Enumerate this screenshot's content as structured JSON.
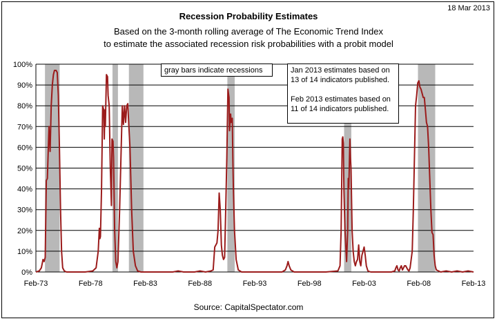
{
  "date_stamp": "18 Mar 2013",
  "source": "Source:  CapitalSpectator.com",
  "notes": {
    "recession_note": "gray bars indicate recessions",
    "estimate_note_1": "Jan 2013 estimates based on 13 of 14 indicators published.",
    "estimate_note_2": "Feb 2013 estimates based on 11 of 14 indicators published."
  },
  "colors": {
    "series": "#9b1b1b",
    "recession_bar": "#b8b8b8",
    "grid": "#000000"
  },
  "chart_data": {
    "type": "line",
    "title": "Recession Probability Estimates",
    "subtitle": [
      "Based on the 3-month rolling average of The Economic Trend Index",
      "to estimate the associated recession risk probabilities with a probit model"
    ],
    "xlabel": "",
    "ylabel": "",
    "xlim": [
      1973.0,
      2013.0
    ],
    "ylim": [
      0,
      100
    ],
    "y_ticks": [
      "0%",
      "10%",
      "20%",
      "30%",
      "40%",
      "50%",
      "60%",
      "70%",
      "80%",
      "90%",
      "100%"
    ],
    "x_ticks": [
      {
        "label": "Feb-73",
        "x": 1973.0
      },
      {
        "label": "Feb-78",
        "x": 1978.0
      },
      {
        "label": "Feb-83",
        "x": 1983.0
      },
      {
        "label": "Feb-88",
        "x": 1988.0
      },
      {
        "label": "Feb-93",
        "x": 1993.0
      },
      {
        "label": "Feb-98",
        "x": 1998.0
      },
      {
        "label": "Feb-03",
        "x": 2003.0
      },
      {
        "label": "Feb-08",
        "x": 2008.0
      },
      {
        "label": "Feb-13",
        "x": 2013.0
      }
    ],
    "grid": "horizontal",
    "legend": "none",
    "recessions": [
      [
        1973.83,
        1975.17
      ],
      [
        1980.0,
        1980.5
      ],
      [
        1981.5,
        1982.83
      ],
      [
        1990.5,
        1991.17
      ],
      [
        2001.17,
        2001.83
      ],
      [
        2007.92,
        2009.5
      ]
    ],
    "series": [
      {
        "points": [
          [
            1973.0,
            0
          ],
          [
            1973.3,
            0.5
          ],
          [
            1973.5,
            2
          ],
          [
            1973.65,
            6
          ],
          [
            1973.75,
            5
          ],
          [
            1973.85,
            7
          ],
          [
            1973.95,
            44
          ],
          [
            1974.05,
            45
          ],
          [
            1974.2,
            70
          ],
          [
            1974.3,
            58
          ],
          [
            1974.4,
            80
          ],
          [
            1974.5,
            90
          ],
          [
            1974.6,
            95
          ],
          [
            1974.7,
            97
          ],
          [
            1974.85,
            97
          ],
          [
            1974.95,
            96
          ],
          [
            1975.05,
            85
          ],
          [
            1975.15,
            60
          ],
          [
            1975.25,
            30
          ],
          [
            1975.35,
            10
          ],
          [
            1975.45,
            2
          ],
          [
            1975.6,
            0.5
          ],
          [
            1975.8,
            0
          ],
          [
            1977.5,
            0
          ],
          [
            1978.2,
            0.5
          ],
          [
            1978.5,
            2
          ],
          [
            1978.7,
            10
          ],
          [
            1978.8,
            21
          ],
          [
            1978.85,
            16
          ],
          [
            1978.9,
            17
          ],
          [
            1979.0,
            40
          ],
          [
            1979.05,
            60
          ],
          [
            1979.1,
            80
          ],
          [
            1979.2,
            78
          ],
          [
            1979.25,
            64
          ],
          [
            1979.3,
            78
          ],
          [
            1979.35,
            70
          ],
          [
            1979.45,
            95
          ],
          [
            1979.55,
            94
          ],
          [
            1979.6,
            85
          ],
          [
            1979.7,
            80
          ],
          [
            1979.8,
            50
          ],
          [
            1979.9,
            32
          ],
          [
            1979.95,
            64
          ],
          [
            1980.05,
            63
          ],
          [
            1980.1,
            55
          ],
          [
            1980.2,
            20
          ],
          [
            1980.3,
            5
          ],
          [
            1980.4,
            2
          ],
          [
            1980.5,
            5
          ],
          [
            1980.65,
            30
          ],
          [
            1980.8,
            60
          ],
          [
            1980.9,
            80
          ],
          [
            1981.0,
            71
          ],
          [
            1981.1,
            80
          ],
          [
            1981.2,
            72
          ],
          [
            1981.3,
            80
          ],
          [
            1981.4,
            81
          ],
          [
            1981.5,
            70
          ],
          [
            1981.6,
            60
          ],
          [
            1981.75,
            30
          ],
          [
            1981.9,
            10
          ],
          [
            1982.1,
            3
          ],
          [
            1982.3,
            0.5
          ],
          [
            1982.6,
            0
          ],
          [
            1985.5,
            0
          ],
          [
            1986.0,
            0.5
          ],
          [
            1986.5,
            0
          ],
          [
            1987.5,
            0
          ],
          [
            1988.0,
            0.5
          ],
          [
            1988.5,
            0
          ],
          [
            1989.0,
            0.5
          ],
          [
            1989.2,
            1
          ],
          [
            1989.35,
            12
          ],
          [
            1989.55,
            14
          ],
          [
            1989.65,
            20
          ],
          [
            1989.75,
            38
          ],
          [
            1989.85,
            30
          ],
          [
            1989.95,
            13
          ],
          [
            1990.05,
            8
          ],
          [
            1990.15,
            6
          ],
          [
            1990.25,
            7
          ],
          [
            1990.35,
            30
          ],
          [
            1990.45,
            55
          ],
          [
            1990.55,
            88
          ],
          [
            1990.65,
            84
          ],
          [
            1990.7,
            68
          ],
          [
            1990.8,
            76
          ],
          [
            1990.85,
            72
          ],
          [
            1990.95,
            74
          ],
          [
            1991.0,
            55
          ],
          [
            1991.05,
            40
          ],
          [
            1991.15,
            20
          ],
          [
            1991.3,
            6
          ],
          [
            1991.5,
            1
          ],
          [
            1991.8,
            0
          ],
          [
            1995.5,
            0
          ],
          [
            1995.8,
            1
          ],
          [
            1995.95,
            3
          ],
          [
            1996.05,
            5
          ],
          [
            1996.15,
            3
          ],
          [
            1996.3,
            1
          ],
          [
            1996.6,
            0
          ],
          [
            1999.5,
            0
          ],
          [
            2000.6,
            0.5
          ],
          [
            2000.8,
            3
          ],
          [
            2000.9,
            20
          ],
          [
            2001.0,
            64
          ],
          [
            2001.05,
            65
          ],
          [
            2001.1,
            62
          ],
          [
            2001.15,
            40
          ],
          [
            2001.25,
            20
          ],
          [
            2001.35,
            10
          ],
          [
            2001.4,
            5
          ],
          [
            2001.5,
            20
          ],
          [
            2001.55,
            45
          ],
          [
            2001.6,
            40
          ],
          [
            2001.7,
            64
          ],
          [
            2001.75,
            55
          ],
          [
            2001.8,
            50
          ],
          [
            2001.9,
            20
          ],
          [
            2002.0,
            10
          ],
          [
            2002.1,
            5
          ],
          [
            2002.2,
            3
          ],
          [
            2002.3,
            5
          ],
          [
            2002.4,
            6
          ],
          [
            2002.5,
            13
          ],
          [
            2002.6,
            5
          ],
          [
            2002.7,
            3
          ],
          [
            2002.8,
            8
          ],
          [
            2002.9,
            10
          ],
          [
            2003.0,
            12
          ],
          [
            2003.1,
            8
          ],
          [
            2003.2,
            3
          ],
          [
            2003.35,
            0.5
          ],
          [
            2003.6,
            0
          ],
          [
            2005.5,
            0
          ],
          [
            2005.8,
            0.5
          ],
          [
            2005.9,
            2
          ],
          [
            2006.0,
            3
          ],
          [
            2006.1,
            1
          ],
          [
            2006.2,
            0.5
          ],
          [
            2006.3,
            2
          ],
          [
            2006.4,
            3
          ],
          [
            2006.5,
            1
          ],
          [
            2006.6,
            2
          ],
          [
            2006.7,
            3
          ],
          [
            2006.8,
            3
          ],
          [
            2006.9,
            2
          ],
          [
            2007.0,
            1
          ],
          [
            2007.1,
            0.5
          ],
          [
            2007.2,
            2
          ],
          [
            2007.4,
            10
          ],
          [
            2007.5,
            30
          ],
          [
            2007.6,
            55
          ],
          [
            2007.7,
            80
          ],
          [
            2007.8,
            85
          ],
          [
            2007.9,
            91
          ],
          [
            2008.0,
            92
          ],
          [
            2008.1,
            89
          ],
          [
            2008.2,
            88
          ],
          [
            2008.3,
            86
          ],
          [
            2008.4,
            84
          ],
          [
            2008.5,
            84
          ],
          [
            2008.6,
            78
          ],
          [
            2008.7,
            72
          ],
          [
            2008.8,
            70
          ],
          [
            2008.9,
            60
          ],
          [
            2009.0,
            45
          ],
          [
            2009.1,
            30
          ],
          [
            2009.2,
            19
          ],
          [
            2009.3,
            18
          ],
          [
            2009.4,
            8
          ],
          [
            2009.5,
            3
          ],
          [
            2009.6,
            1
          ],
          [
            2009.8,
            0.5
          ],
          [
            2010.0,
            0
          ],
          [
            2010.5,
            0.5
          ],
          [
            2011.0,
            0
          ],
          [
            2011.5,
            0.5
          ],
          [
            2012.0,
            0
          ],
          [
            2012.5,
            0.5
          ],
          [
            2013.0,
            0
          ]
        ]
      }
    ]
  }
}
